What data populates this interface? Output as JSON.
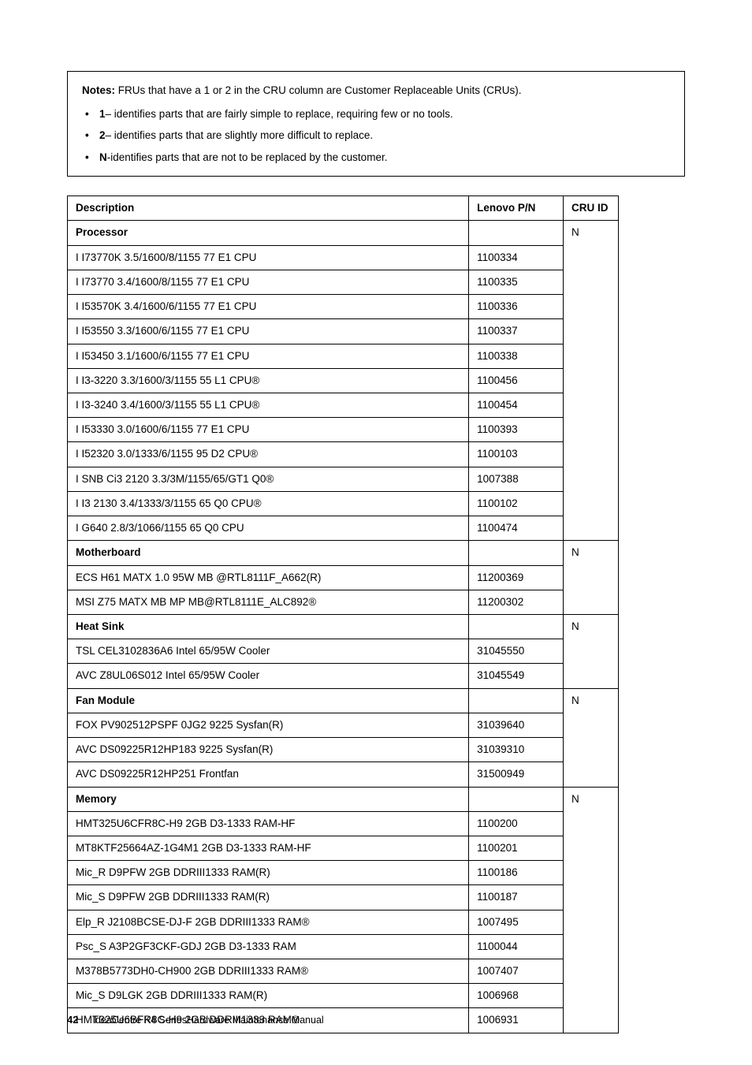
{
  "notes": {
    "intro_label": "Notes:",
    "intro_text": " FRUs that have a 1 or 2 in the CRU column are Customer Replaceable Units (CRUs).",
    "bullets": [
      {
        "bold": "1",
        "rest": "– identifies parts that are fairly simple to replace, requiring few or no tools."
      },
      {
        "bold": "2",
        "rest": "– identifies parts that are slightly more difficult to replace."
      },
      {
        "bold": "N",
        "rest": "-identifies parts that are not to be replaced by the customer."
      }
    ]
  },
  "table": {
    "headers": {
      "desc": "Description",
      "pn": "Lenovo P/N",
      "cru": "CRU ID"
    },
    "sections": [
      {
        "category": "Processor",
        "cru": "N",
        "rows": [
          {
            "desc": "I I73770K 3.5/1600/8/1155 77 E1 CPU",
            "pn": "1100334"
          },
          {
            "desc": "I I73770 3.4/1600/8/1155 77 E1 CPU",
            "pn": "1100335"
          },
          {
            "desc": "I I53570K 3.4/1600/6/1155 77 E1 CPU",
            "pn": "1100336"
          },
          {
            "desc": "I I53550 3.3/1600/6/1155 77 E1 CPU",
            "pn": "1100337"
          },
          {
            "desc": "I I53450 3.1/1600/6/1155 77 E1 CPU",
            "pn": "1100338"
          },
          {
            "desc": "I I3-3220 3.3/1600/3/1155 55 L1 CPU®",
            "pn": "1100456"
          },
          {
            "desc": "I I3-3240 3.4/1600/3/1155 55 L1 CPU®",
            "pn": "1100454"
          },
          {
            "desc": "I I53330 3.0/1600/6/1155 77 E1 CPU",
            "pn": "1100393"
          },
          {
            "desc": "I I52320 3.0/1333/6/1155 95 D2 CPU®",
            "pn": "1100103"
          },
          {
            "desc": "I SNB Ci3 2120 3.3/3M/1155/65/GT1 Q0®",
            "pn": "1007388"
          },
          {
            "desc": "I I3 2130 3.4/1333/3/1155 65 Q0 CPU®",
            "pn": "1100102"
          },
          {
            "desc": "I G640 2.8/3/1066/1155 65 Q0 CPU",
            "pn": "1100474"
          }
        ]
      },
      {
        "category": "Motherboard",
        "cru": "N",
        "rows": [
          {
            "desc": "ECS H61 MATX 1.0 95W MB @RTL8111F_A662(R)",
            "pn": "11200369"
          },
          {
            "desc": "MSI Z75 MATX MB MP MB@RTL8111E_ALC892®",
            "pn": "11200302"
          }
        ]
      },
      {
        "category": "Heat Sink",
        "cru": "N",
        "rows": [
          {
            "desc": "TSL CEL3102836A6 Intel 65/95W Cooler",
            "pn": "31045550"
          },
          {
            "desc": "AVC Z8UL06S012 Intel 65/95W Cooler",
            "pn": "31045549"
          }
        ]
      },
      {
        "category": "Fan Module",
        "cru": "N",
        "rows": [
          {
            "desc": "FOX PV902512PSPF 0JG2 9225 Sysfan(R)",
            "pn": "31039640"
          },
          {
            "desc": "AVC DS09225R12HP183 9225 Sysfan(R)",
            "pn": "31039310"
          },
          {
            "desc": "AVC DS09225R12HP251 Frontfan",
            "pn": "31500949"
          }
        ]
      },
      {
        "category": "Memory",
        "cru": "N",
        "rows": [
          {
            "desc": "HMT325U6CFR8C-H9 2GB D3-1333 RAM-HF",
            "pn": "1100200"
          },
          {
            "desc": "MT8KTF25664AZ-1G4M1 2GB D3-1333 RAM-HF",
            "pn": "1100201"
          },
          {
            "desc": "Mic_R D9PFW 2GB DDRIII1333 RAM(R)",
            "pn": "1100186"
          },
          {
            "desc": "Mic_S D9PFW 2GB DDRIII1333 RAM(R)",
            "pn": "1100187"
          },
          {
            "desc": "Elp_R J2108BCSE-DJ-F 2GB DDRIII1333 RAM®",
            "pn": "1007495"
          },
          {
            "desc": "Psc_S A3P2GF3CKF-GDJ 2GB D3-1333 RAM",
            "pn": "1100044"
          },
          {
            "desc": "M378B5773DH0-CH900 2GB DDRIII1333 RAM®",
            "pn": "1007407"
          },
          {
            "desc": "Mic_S D9LGK 2GB DDRIII1333 RAM(R)",
            "pn": "1006968"
          },
          {
            "desc": "HMT325U6BFR8C-H9 2GB DDRIII1333 RAM®",
            "pn": "1006931"
          }
        ]
      }
    ]
  },
  "footer": {
    "page_number": "42",
    "title": "IdeaCentre K4 SeriesHardware Maintenance Manual"
  }
}
